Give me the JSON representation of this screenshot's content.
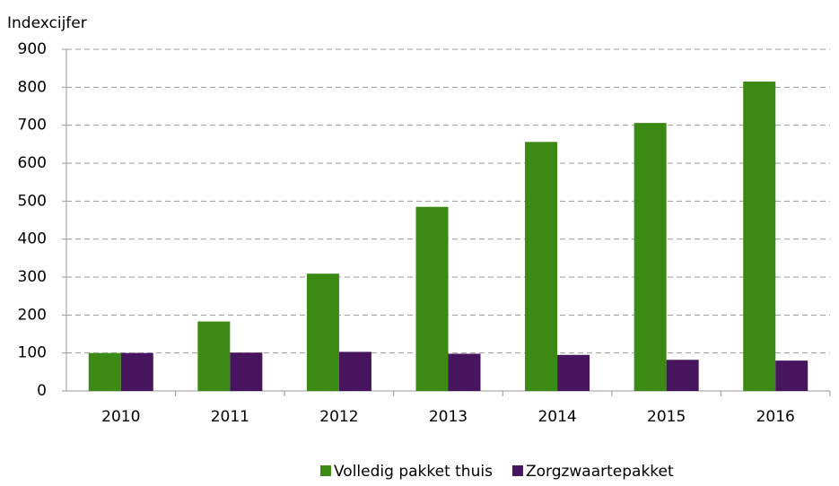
{
  "chart_data": {
    "type": "bar",
    "ylabel": "Indexcijfer",
    "categories": [
      "2010",
      "2011",
      "2012",
      "2013",
      "2014",
      "2015",
      "2016"
    ],
    "series": [
      {
        "name": "Volledig pakket thuis",
        "color": "#3a8a13",
        "values": [
          100,
          183,
          309,
          485,
          656,
          706,
          815
        ]
      },
      {
        "name": "Zorgzwaartepakket",
        "color": "#46155e",
        "values": [
          100,
          101,
          103,
          98,
          95,
          82,
          80
        ]
      }
    ],
    "ylim": [
      0,
      900
    ],
    "yticks": [
      0,
      100,
      200,
      300,
      400,
      500,
      600,
      700,
      800,
      900
    ],
    "grid": true,
    "legend": "bottom"
  }
}
